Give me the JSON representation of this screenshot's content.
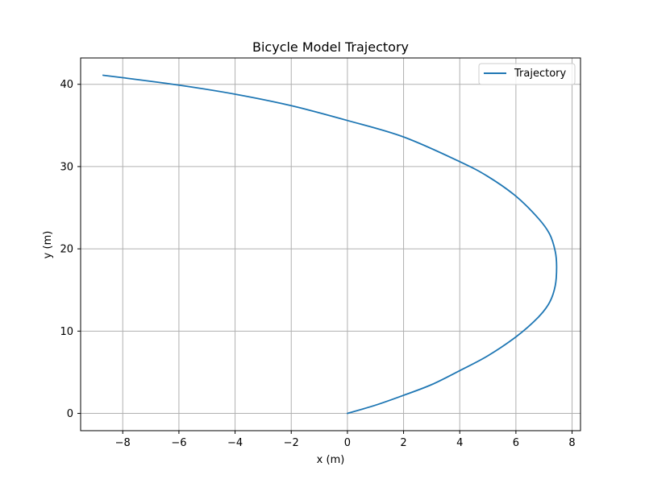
{
  "chart_data": {
    "type": "line",
    "title": "Bicycle Model Trajectory",
    "xlabel": "x (m)",
    "ylabel": "y (m)",
    "xlim": [
      -9.5,
      8.3
    ],
    "ylim": [
      -2.1,
      43.2
    ],
    "grid": true,
    "legend_position": "top-right",
    "x_ticks": [
      {
        "value": -8,
        "label": "−8"
      },
      {
        "value": -6,
        "label": "−6"
      },
      {
        "value": -4,
        "label": "−4"
      },
      {
        "value": -2,
        "label": "−2"
      },
      {
        "value": 0,
        "label": "0"
      },
      {
        "value": 2,
        "label": "2"
      },
      {
        "value": 4,
        "label": "4"
      },
      {
        "value": 6,
        "label": "6"
      },
      {
        "value": 8,
        "label": "8"
      }
    ],
    "y_ticks": [
      {
        "value": 0,
        "label": "0"
      },
      {
        "value": 10,
        "label": "10"
      },
      {
        "value": 20,
        "label": "20"
      },
      {
        "value": 30,
        "label": "30"
      },
      {
        "value": 40,
        "label": "40"
      }
    ],
    "series": [
      {
        "name": "Trajectory",
        "color": "#1f77b4",
        "x": [
          0.0,
          1.0,
          2.0,
          3.0,
          4.0,
          5.0,
          6.0,
          6.8,
          7.2,
          7.4,
          7.45,
          7.4,
          7.2,
          6.8,
          6.0,
          5.0,
          4.0,
          2.0,
          0.0,
          -2.0,
          -4.0,
          -6.0,
          -8.0,
          -8.7
        ],
        "y": [
          0.0,
          1.0,
          2.2,
          3.5,
          5.2,
          7.0,
          9.3,
          11.7,
          13.5,
          15.5,
          17.8,
          19.7,
          21.8,
          23.7,
          26.4,
          28.8,
          30.6,
          33.6,
          35.6,
          37.4,
          38.8,
          39.9,
          40.8,
          41.1
        ]
      }
    ]
  }
}
